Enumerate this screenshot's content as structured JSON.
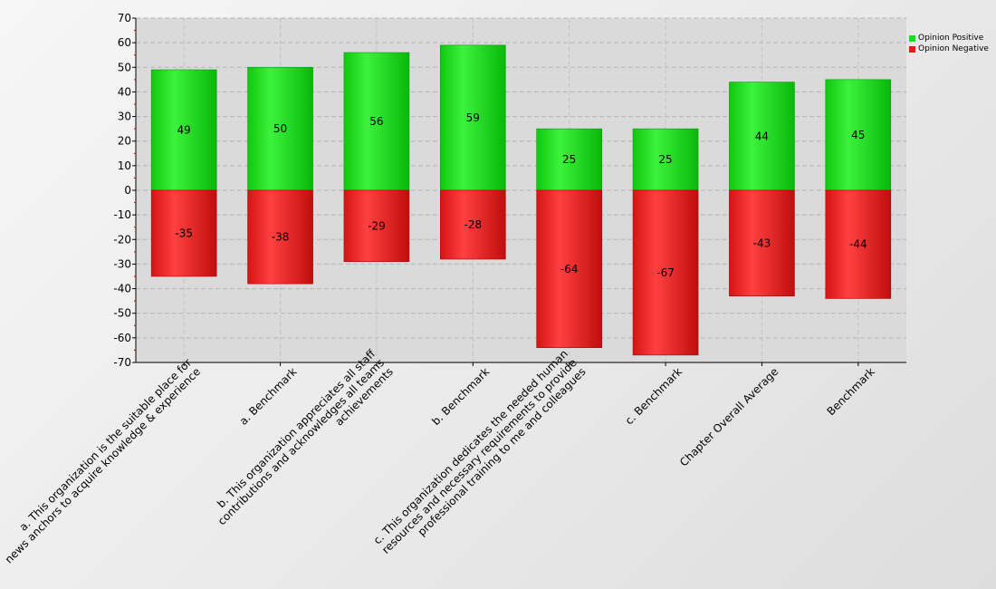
{
  "colors": {
    "positive": "#19e019",
    "negative": "#e81a1a",
    "plot_background": "#d9d9d9",
    "grid": "#b8b8b8"
  },
  "legend": {
    "items": [
      {
        "label": "Opinion Positive",
        "color": "#19e019"
      },
      {
        "label": "Opinion Negative",
        "color": "#e81a1a"
      }
    ]
  },
  "chart_data": {
    "type": "bar",
    "stacked": true,
    "grid": true,
    "legend_position": "top-right",
    "ylim": [
      -70,
      70
    ],
    "yticks": [
      70,
      60,
      50,
      40,
      30,
      20,
      10,
      0,
      -10,
      -20,
      -30,
      -40,
      -50,
      -60,
      -70
    ],
    "categories": [
      "a. This organization is the suitable place for news anchors to acquire knowledge & experience",
      "a. Benchmark",
      "b. This organization appreciates all staff contributions and acknowledges all teams achievements",
      "b. Benchmark",
      "c. This organization dedicates the needed human resources and necessary requirements to provide professional training to me and colleagues",
      "c. Benchmark",
      "Chapter Overall Average",
      "Benchmark"
    ],
    "category_label_lines": [
      [
        "a. This organization is the suitable place for",
        "news anchors to acquire knowledge & experience"
      ],
      [
        "a. Benchmark"
      ],
      [
        "b. This organization appreciates all staff",
        "contributions and acknowledges all teams",
        "achievements"
      ],
      [
        "b. Benchmark"
      ],
      [
        "c. This organization dedicates the needed human",
        "resources and necessary requirements to provide",
        "professional training to me and colleagues"
      ],
      [
        "c. Benchmark"
      ],
      [
        "Chapter Overall Average"
      ],
      [
        "Benchmark"
      ]
    ],
    "series": [
      {
        "name": "Opinion Positive",
        "values": [
          49,
          50,
          56,
          59,
          25,
          25,
          44,
          45
        ]
      },
      {
        "name": "Opinion Negative",
        "values": [
          -35,
          -38,
          -29,
          -28,
          -64,
          -67,
          -43,
          -44
        ]
      }
    ]
  }
}
